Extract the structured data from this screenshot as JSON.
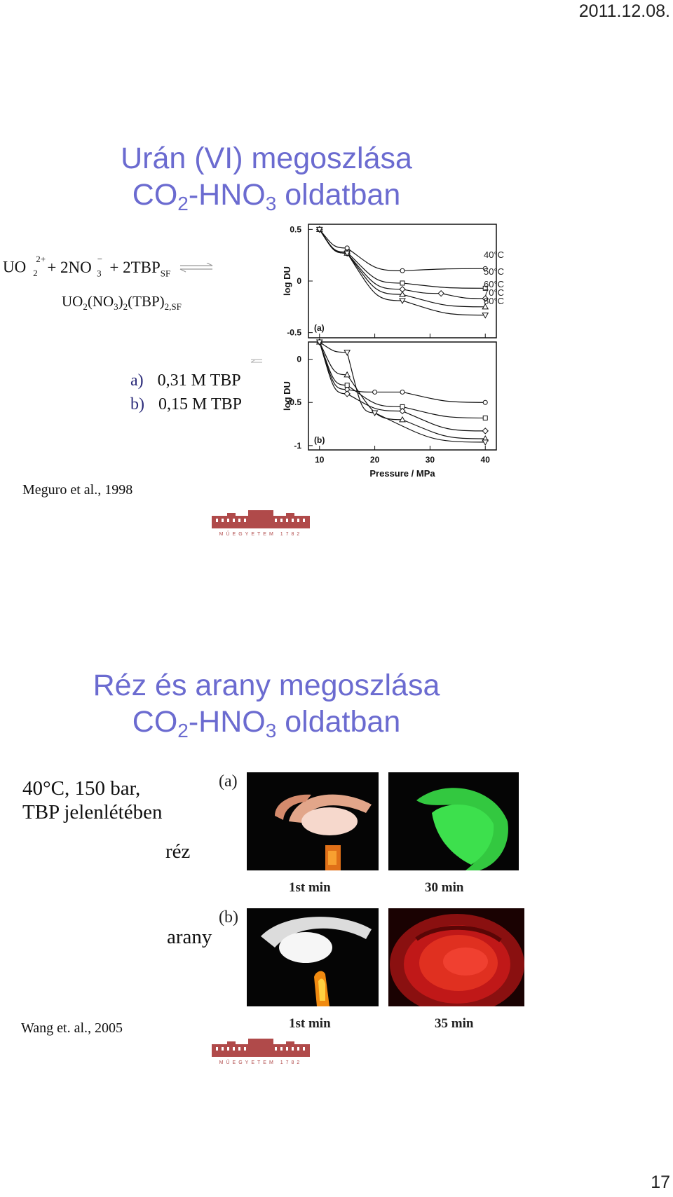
{
  "header": {
    "date": "2011.12.08."
  },
  "page_number": "17",
  "slide1": {
    "title_line1": "Urán (VI) megoszlása",
    "title_line2": {
      "a": "CO",
      "sub1": "2",
      "b": "-HNO",
      "sub2": "3",
      "c": " oldatban"
    },
    "equation": {
      "line1_a": "UO",
      "line1_a_sub": "2",
      "line1_a_sup": "2+",
      "line1_b": "+ 2NO",
      "line1_b_sub": "3",
      "line1_b_sup": "−",
      "line1_c": "+ 2TBP",
      "line1_c_sub": "SF",
      "line2_a": "UO",
      "line2_a_sub": "2",
      "line2_b": "(NO",
      "line2_b_sub": "3",
      "line2_c": ")",
      "line2_c_sub": "2",
      "line2_d": "(TBP)",
      "line2_d_sub": "2,SF"
    },
    "conditions": [
      {
        "tag": "a)",
        "text": "0,31 M TBP"
      },
      {
        "tag": "b)",
        "text": "0,15 M TBP"
      }
    ],
    "citation": "Meguro et al., 1998",
    "logo_text": "MŰEGYETEM 1782"
  },
  "chart_data": [
    {
      "type": "scatter",
      "panel_label": "(a)",
      "ylabel": "log DU",
      "ylim": [
        -0.55,
        0.55
      ],
      "yticks": [
        "0.5",
        "0",
        "-0.5"
      ],
      "xlim": [
        8,
        42
      ],
      "series": [
        {
          "name": "40°C",
          "x": [
            10,
            15,
            25,
            40
          ],
          "y": [
            0.5,
            0.32,
            0.1,
            0.12
          ]
        },
        {
          "name": "50°C",
          "x": [
            10,
            15,
            25,
            40
          ],
          "y": [
            0.5,
            0.28,
            -0.02,
            -0.07
          ]
        },
        {
          "name": "60°C",
          "x": [
            10,
            15,
            25,
            32,
            40
          ],
          "y": [
            0.5,
            0.27,
            -0.08,
            -0.12,
            -0.17
          ]
        },
        {
          "name": "70°C",
          "x": [
            10,
            15,
            25,
            40
          ],
          "y": [
            0.5,
            0.27,
            -0.13,
            -0.25
          ]
        },
        {
          "name": "80°C",
          "x": [
            10,
            15,
            25,
            40
          ],
          "y": [
            0.5,
            0.27,
            -0.19,
            -0.33
          ]
        }
      ]
    },
    {
      "type": "scatter",
      "panel_label": "(b)",
      "ylabel": "log DU",
      "xlabel": "Pressure / MPa",
      "ylim": [
        -1.05,
        0.2
      ],
      "yticks": [
        "0",
        "-0.5",
        "-1"
      ],
      "xticks": [
        "10",
        "20",
        "30",
        "40"
      ],
      "xlim": [
        8,
        42
      ],
      "series": [
        {
          "name": "40°C",
          "x": [
            10,
            15,
            20,
            25,
            40
          ],
          "y": [
            0.2,
            -0.35,
            -0.38,
            -0.38,
            -0.5
          ]
        },
        {
          "name": "50°C",
          "x": [
            10,
            15,
            25,
            40
          ],
          "y": [
            0.2,
            -0.3,
            -0.55,
            -0.68
          ]
        },
        {
          "name": "60°C",
          "x": [
            10,
            15,
            25,
            40
          ],
          "y": [
            0.2,
            -0.4,
            -0.6,
            -0.83
          ]
        },
        {
          "name": "70°C",
          "x": [
            10,
            15,
            25,
            40
          ],
          "y": [
            0.2,
            -0.18,
            -0.7,
            -0.92
          ]
        },
        {
          "name": "80°C",
          "x": [
            10,
            15,
            20,
            40
          ],
          "y": [
            0.2,
            0.08,
            -0.62,
            -0.96
          ]
        }
      ]
    }
  ],
  "slide2": {
    "title_line1": "Réz és arany megoszlása",
    "title_line2": {
      "a": "CO",
      "sub1": "2",
      "b": "-HNO",
      "sub2": "3",
      "c": " oldatban"
    },
    "conditions_line1": "40°C, 150 bar,",
    "conditions_line2": "TBP jelenlétében",
    "label_copper": "réz",
    "label_gold": "arany",
    "panel_a": "(a)",
    "panel_b": "(b)",
    "captions": [
      "1st  min",
      "30 min",
      "1st min",
      "35 min"
    ],
    "citation": "Wang et. al., 2005",
    "logo_text": "MŰEGYETEM 1782"
  },
  "colors": {
    "title": "#6b6bd0"
  }
}
